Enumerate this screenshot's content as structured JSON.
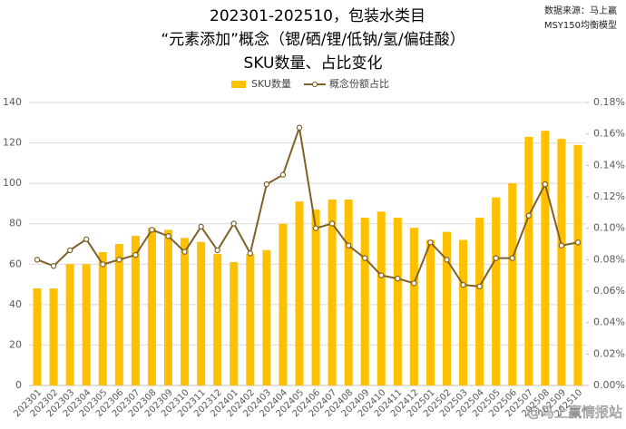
{
  "chart_data": {
    "type": "bar_line",
    "title": [
      "202301-202510，包装水类目",
      "“元素添加”概念（锶/硒/锂/低钠/氢/偏硅酸）",
      "SKU数量、占比变化"
    ],
    "source": [
      "数据来源：马上赢",
      "MSY150均衡模型"
    ],
    "watermark": "@马上赢情报站",
    "categories": [
      "202301",
      "202302",
      "202303",
      "202304",
      "202305",
      "202306",
      "202307",
      "202308",
      "202309",
      "202310",
      "202311",
      "202312",
      "202401",
      "202402",
      "202403",
      "202404",
      "202405",
      "202406",
      "202407",
      "202408",
      "202409",
      "202410",
      "202411",
      "202412",
      "202501",
      "202502",
      "202503",
      "202504",
      "202505",
      "202506",
      "202507",
      "202508",
      "202509",
      "202510"
    ],
    "series": [
      {
        "name": "SKU数量",
        "type": "bar",
        "color": "#FFC000",
        "values": [
          48,
          48,
          60,
          60,
          66,
          70,
          74,
          78,
          77,
          73,
          71,
          65,
          61,
          65,
          67,
          80,
          91,
          87,
          92,
          92,
          83,
          86,
          83,
          78,
          72,
          76,
          72,
          83,
          93,
          100,
          123,
          126,
          122,
          119
        ]
      },
      {
        "name": "概念份额占比",
        "type": "line",
        "axis": "y2",
        "color": "#7F6029",
        "values": [
          0.08,
          0.076,
          0.086,
          0.093,
          0.077,
          0.08,
          0.083,
          0.099,
          0.095,
          0.085,
          0.101,
          0.086,
          0.103,
          0.084,
          0.128,
          0.134,
          0.164,
          0.1,
          0.103,
          0.089,
          0.081,
          0.07,
          0.068,
          0.065,
          0.091,
          0.08,
          0.064,
          0.063,
          0.081,
          0.081,
          0.108,
          0.128,
          0.089,
          0.091
        ]
      }
    ],
    "ylim": [
      0,
      140
    ],
    "yticks": [
      0,
      20,
      40,
      60,
      80,
      100,
      120,
      140
    ],
    "y2lim": [
      0,
      0.18
    ],
    "y2ticks": [
      {
        "value": 0,
        "label": "0.00%"
      },
      {
        "value": 0.02,
        "label": "0.02%"
      },
      {
        "value": 0.04,
        "label": "0.04%"
      },
      {
        "value": 0.06,
        "label": "0.06%"
      },
      {
        "value": 0.08,
        "label": "0.08%"
      },
      {
        "value": 0.1,
        "label": "0.10%"
      },
      {
        "value": 0.12,
        "label": "0.12%"
      },
      {
        "value": 0.14,
        "label": "0.14%"
      },
      {
        "value": 0.16,
        "label": "0.16%"
      },
      {
        "value": 0.18,
        "label": "0.18%"
      }
    ],
    "grid": true,
    "legend": "top"
  }
}
